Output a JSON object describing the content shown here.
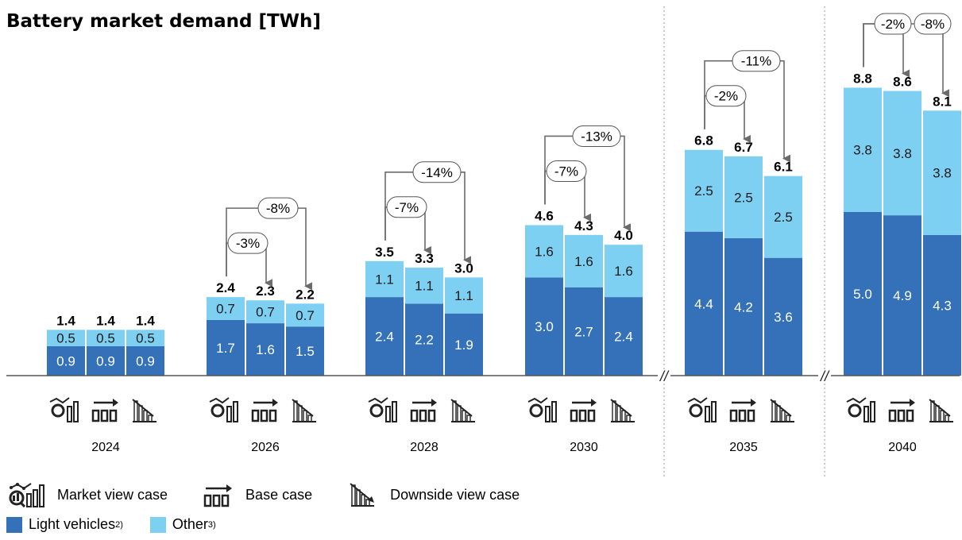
{
  "title": "Battery market demand [TWh]",
  "colors": {
    "light_vehicles": "#3471b8",
    "other": "#7dd0f2",
    "arrow": "#6b6b6b",
    "axis": "#555555"
  },
  "legend": {
    "cases": [
      {
        "icon": "market-view-icon",
        "label": "Market view case"
      },
      {
        "icon": "base-case-icon",
        "label": "Base case"
      },
      {
        "icon": "downside-view-icon",
        "label": "Downside view case"
      }
    ],
    "segments": [
      {
        "label": "Light vehicles",
        "sup": "2)"
      },
      {
        "label": "Other",
        "sup": "3)"
      }
    ]
  },
  "axis_break_marker": "//",
  "chart_data": {
    "type": "bar",
    "stacked": true,
    "title": "Battery market demand [TWh]",
    "unit": "TWh",
    "categories": [
      "2024",
      "2026",
      "2028",
      "2030",
      "2035",
      "2040"
    ],
    "cases": [
      "Market view case",
      "Base case",
      "Downside view case"
    ],
    "series": [
      {
        "name": "Light vehicles",
        "values": [
          [
            0.9,
            0.9,
            0.9
          ],
          [
            1.7,
            1.6,
            1.5
          ],
          [
            2.4,
            2.2,
            1.9
          ],
          [
            3.0,
            2.7,
            2.4
          ],
          [
            4.4,
            4.2,
            3.6
          ],
          [
            5.0,
            4.9,
            4.3
          ]
        ]
      },
      {
        "name": "Other",
        "values": [
          [
            0.5,
            0.5,
            0.5
          ],
          [
            0.7,
            0.7,
            0.7
          ],
          [
            1.1,
            1.1,
            1.1
          ],
          [
            1.6,
            1.6,
            1.6
          ],
          [
            2.5,
            2.5,
            2.5
          ],
          [
            3.8,
            3.8,
            3.8
          ]
        ]
      }
    ],
    "totals": [
      [
        "1.4",
        "1.4",
        "1.4"
      ],
      [
        "2.4",
        "2.3",
        "2.2"
      ],
      [
        "3.5",
        "3.3",
        "3.0"
      ],
      [
        "4.6",
        "4.3",
        "4.0"
      ],
      [
        "6.8",
        "6.7",
        "6.1"
      ],
      [
        "8.8",
        "8.6",
        "8.1"
      ]
    ],
    "bar_labels": {
      "light": [
        [
          "0.9",
          "0.9",
          "0.9"
        ],
        [
          "1.7",
          "1.6",
          "1.5"
        ],
        [
          "2.4",
          "2.2",
          "1.9"
        ],
        [
          "3.0",
          "2.7",
          "2.4"
        ],
        [
          "4.4",
          "4.2",
          "3.6"
        ],
        [
          "5.0",
          "4.9",
          "4.3"
        ]
      ],
      "other": [
        [
          "0.5",
          "0.5",
          "0.5"
        ],
        [
          "0.7",
          "0.7",
          "0.7"
        ],
        [
          "1.1",
          "1.1",
          "1.1"
        ],
        [
          "1.6",
          "1.6",
          "1.6"
        ],
        [
          "2.5",
          "2.5",
          "2.5"
        ],
        [
          "3.8",
          "3.8",
          "3.8"
        ]
      ]
    },
    "annotations": [
      {
        "category": "2026",
        "base_case": "-3%",
        "downside": "-8%"
      },
      {
        "category": "2028",
        "base_case": "-7%",
        "downside": "-14%"
      },
      {
        "category": "2030",
        "base_case": "-7%",
        "downside": "-13%"
      },
      {
        "category": "2035",
        "base_case": "-2%",
        "downside": "-11%"
      },
      {
        "category": "2040",
        "base_case": "-2%",
        "downside": "-8%"
      }
    ],
    "axis_breaks_after": [
      "2030",
      "2035"
    ],
    "grid": false,
    "legend_position": "bottom-left"
  }
}
